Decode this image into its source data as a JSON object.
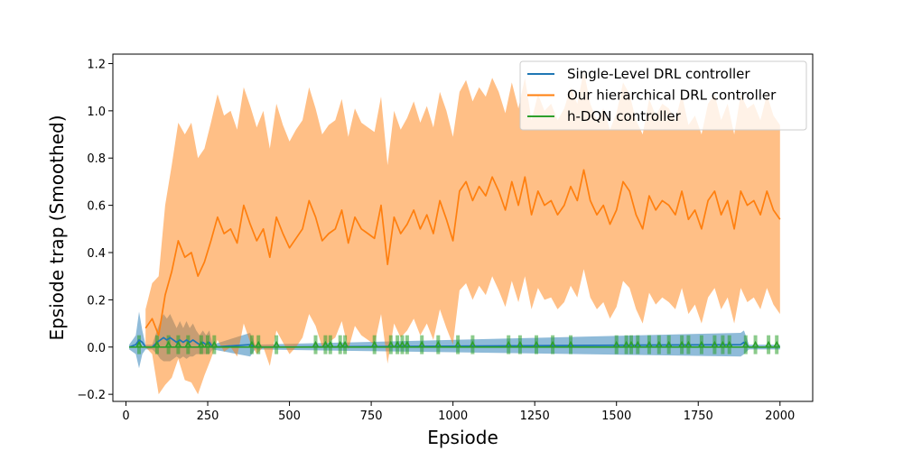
{
  "chart_data": {
    "type": "line",
    "xlabel": "Epsiode",
    "ylabel": "Epsiode trap (Smoothed)",
    "xlim": [
      -40,
      2100
    ],
    "ylim": [
      -0.23,
      1.24
    ],
    "xticks": [
      0,
      250,
      500,
      750,
      1000,
      1250,
      1500,
      1750,
      2000
    ],
    "yticks": [
      -0.2,
      0.0,
      0.2,
      0.4,
      0.6,
      0.8,
      1.0,
      1.2
    ],
    "xtick_labels": [
      "0",
      "250",
      "500",
      "750",
      "1000",
      "1250",
      "1500",
      "1750",
      "2000"
    ],
    "ytick_labels": [
      "−0.2",
      "0.0",
      "0.2",
      "0.4",
      "0.6",
      "0.8",
      "1.0",
      "1.2"
    ],
    "legend_position": "top-right",
    "grid": false,
    "series": [
      {
        "name": "Single-Level DRL controller",
        "color": "#1f77b4",
        "x": [
          10,
          30,
          40,
          50,
          60,
          80,
          95,
          105,
          115,
          125,
          135,
          145,
          155,
          165,
          175,
          185,
          195,
          205,
          215,
          225,
          235,
          245,
          255,
          265,
          380,
          395,
          1880,
          1890,
          1905,
          2000
        ],
        "y": [
          0,
          0.01,
          0.03,
          0.02,
          0,
          0,
          0.02,
          0.03,
          0.04,
          0.03,
          0.04,
          0.03,
          0.02,
          0.03,
          0.02,
          0.03,
          0.02,
          0.03,
          0.02,
          0.01,
          0.02,
          0.01,
          0.02,
          0,
          0.01,
          0,
          0.01,
          0.02,
          0,
          0
        ],
        "band": [
          0.01,
          0.04,
          0.12,
          0.05,
          0.01,
          0.01,
          0.05,
          0.08,
          0.1,
          0.09,
          0.1,
          0.08,
          0.06,
          0.08,
          0.06,
          0.08,
          0.06,
          0.07,
          0.05,
          0.04,
          0.05,
          0.04,
          0.05,
          0.01,
          0.05,
          0.01,
          0.05,
          0.05,
          0.01,
          0.01
        ]
      },
      {
        "name": "Our hierarchical DRL controller",
        "color": "#ff7f0e",
        "x": [
          60,
          80,
          100,
          120,
          140,
          160,
          180,
          200,
          220,
          240,
          260,
          280,
          300,
          320,
          340,
          360,
          380,
          400,
          420,
          440,
          460,
          480,
          500,
          520,
          540,
          560,
          580,
          600,
          620,
          640,
          660,
          680,
          700,
          720,
          740,
          760,
          780,
          800,
          820,
          840,
          860,
          880,
          900,
          920,
          940,
          960,
          980,
          1000,
          1020,
          1040,
          1060,
          1080,
          1100,
          1120,
          1140,
          1160,
          1180,
          1200,
          1220,
          1240,
          1260,
          1280,
          1300,
          1320,
          1340,
          1360,
          1380,
          1400,
          1420,
          1440,
          1460,
          1480,
          1500,
          1520,
          1540,
          1560,
          1580,
          1600,
          1620,
          1640,
          1660,
          1680,
          1700,
          1720,
          1740,
          1760,
          1780,
          1800,
          1820,
          1840,
          1860,
          1880,
          1900,
          1920,
          1940,
          1960,
          1980,
          2000
        ],
        "y": [
          0.08,
          0.12,
          0.05,
          0.22,
          0.32,
          0.45,
          0.38,
          0.4,
          0.3,
          0.36,
          0.45,
          0.55,
          0.48,
          0.5,
          0.44,
          0.6,
          0.52,
          0.45,
          0.5,
          0.38,
          0.55,
          0.48,
          0.42,
          0.46,
          0.5,
          0.62,
          0.55,
          0.45,
          0.48,
          0.5,
          0.58,
          0.44,
          0.55,
          0.5,
          0.48,
          0.46,
          0.6,
          0.35,
          0.55,
          0.48,
          0.52,
          0.58,
          0.5,
          0.56,
          0.48,
          0.62,
          0.54,
          0.45,
          0.66,
          0.7,
          0.62,
          0.68,
          0.64,
          0.72,
          0.66,
          0.58,
          0.7,
          0.6,
          0.72,
          0.56,
          0.66,
          0.6,
          0.62,
          0.56,
          0.6,
          0.68,
          0.62,
          0.75,
          0.62,
          0.56,
          0.6,
          0.52,
          0.58,
          0.7,
          0.66,
          0.56,
          0.5,
          0.64,
          0.58,
          0.62,
          0.6,
          0.56,
          0.66,
          0.54,
          0.58,
          0.5,
          0.62,
          0.66,
          0.56,
          0.62,
          0.5,
          0.66,
          0.6,
          0.62,
          0.56,
          0.66,
          0.58,
          0.54
        ],
        "band": [
          0.08,
          0.15,
          0.25,
          0.38,
          0.45,
          0.5,
          0.52,
          0.55,
          0.5,
          0.48,
          0.5,
          0.52,
          0.5,
          0.5,
          0.48,
          0.5,
          0.5,
          0.48,
          0.5,
          0.46,
          0.48,
          0.46,
          0.45,
          0.46,
          0.46,
          0.48,
          0.46,
          0.45,
          0.46,
          0.46,
          0.47,
          0.45,
          0.46,
          0.45,
          0.45,
          0.45,
          0.46,
          0.42,
          0.45,
          0.44,
          0.45,
          0.46,
          0.45,
          0.46,
          0.45,
          0.46,
          0.46,
          0.44,
          0.42,
          0.43,
          0.42,
          0.42,
          0.42,
          0.42,
          0.42,
          0.41,
          0.42,
          0.41,
          0.42,
          0.4,
          0.41,
          0.4,
          0.41,
          0.4,
          0.41,
          0.42,
          0.41,
          0.42,
          0.41,
          0.4,
          0.41,
          0.4,
          0.41,
          0.42,
          0.41,
          0.4,
          0.4,
          0.41,
          0.4,
          0.41,
          0.41,
          0.4,
          0.41,
          0.4,
          0.4,
          0.4,
          0.41,
          0.41,
          0.4,
          0.41,
          0.4,
          0.41,
          0.41,
          0.41,
          0.4,
          0.41,
          0.4,
          0.4
        ]
      },
      {
        "name": "h-DQN controller",
        "color": "#2ca02c",
        "x": [
          10,
          2000
        ],
        "y": [
          0,
          0
        ],
        "spikes": [
          40,
          95,
          130,
          160,
          190,
          230,
          250,
          270,
          385,
          405,
          460,
          580,
          610,
          625,
          655,
          670,
          760,
          810,
          830,
          845,
          860,
          905,
          955,
          1015,
          1060,
          1170,
          1205,
          1255,
          1305,
          1360,
          1500,
          1530,
          1545,
          1565,
          1600,
          1630,
          1660,
          1700,
          1720,
          1760,
          1800,
          1825,
          1845,
          1895,
          1925,
          1965,
          1990
        ]
      }
    ]
  }
}
